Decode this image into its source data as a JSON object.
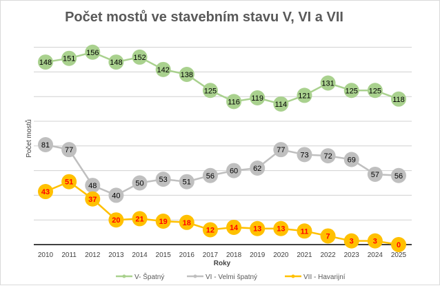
{
  "chart_data": {
    "type": "line",
    "title": "Počet mostů ve stavebním stavu V, VI a VII",
    "xlabel": "Roky",
    "ylabel": "Počet mostů",
    "ylim": [
      0,
      160
    ],
    "grid": true,
    "legend_position": "bottom",
    "categories": [
      "2010",
      "2011",
      "2012",
      "2013",
      "2014",
      "2015",
      "2016",
      "2017",
      "2018",
      "2019",
      "2020",
      "2021",
      "2022",
      "2023",
      "2024",
      "2025"
    ],
    "series": [
      {
        "name": "V- Špatný",
        "color": "#a9d18e",
        "label_color": "#000000",
        "values": [
          148,
          151,
          156,
          148,
          152,
          142,
          138,
          125,
          116,
          119,
          114,
          121,
          131,
          125,
          125,
          118
        ]
      },
      {
        "name": "VI - Velmi špatný",
        "color": "#bfbfbf",
        "label_color": "#000000",
        "values": [
          81,
          77,
          48,
          40,
          50,
          53,
          51,
          56,
          60,
          62,
          77,
          73,
          72,
          69,
          57,
          56
        ]
      },
      {
        "name": "VII - Havarijní",
        "color": "#ffc000",
        "label_color": "#ff0000",
        "values": [
          43,
          51,
          37,
          20,
          21,
          19,
          18,
          12,
          14,
          13,
          13,
          11,
          7,
          3,
          3,
          0
        ]
      }
    ]
  }
}
